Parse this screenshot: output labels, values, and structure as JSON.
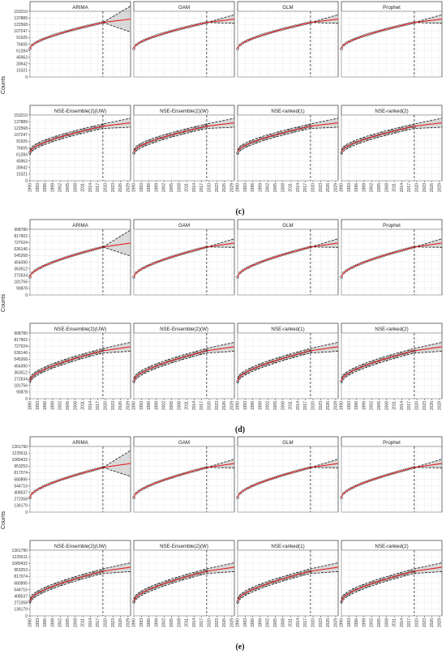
{
  "panels": [
    {
      "label": "(c)",
      "ticks": [
        "0",
        "15321",
        "30642",
        "45963",
        "61284",
        "76605",
        "91926",
        "107247",
        "122568",
        "137889",
        "153210"
      ],
      "ymax": 153210,
      "start": 0.43,
      "forecast": 0.83
    },
    {
      "label": "(d)",
      "ticks": [
        "0",
        "90878",
        "181756",
        "272634",
        "363512",
        "454390",
        "545268",
        "636146",
        "727024",
        "817902",
        "908780"
      ],
      "ymax": 908780,
      "start": 0.27,
      "forecast": 0.73
    },
    {
      "label": "(e)",
      "ticks": [
        "0",
        "136179",
        "272358",
        "408537",
        "544716",
        "680895",
        "817074",
        "953253",
        "1089432",
        "1225611",
        "1361790"
      ],
      "ymax": 1361790,
      "start": 0.22,
      "forecast": 0.68
    }
  ],
  "models_top": [
    "ARIMA",
    "GAM",
    "GLM",
    "Prophet"
  ],
  "models_bottom": [
    "NSE-Ensemble(2)(UW)",
    "NSE-Ensemble(2)(W)",
    "NSE-ranked(1)",
    "NSE-ranked(2)"
  ],
  "ylabel": "Counts",
  "x_ticks": [
    "1990",
    "1993",
    "1996",
    "1999",
    "2002",
    "2005",
    "2008",
    "2011",
    "2014",
    "2017",
    "2020",
    "2023",
    "2026",
    "2029"
  ],
  "vline_year": 2019,
  "colors": {
    "fit": "#e02020",
    "band": "#bbbbbb",
    "ci": "#111111",
    "points": "#222222",
    "grid": "#ebebeb"
  },
  "chart_data": [
    {
      "type": "line",
      "title": "",
      "ylabel": "Counts",
      "xlim": [
        1990,
        2030
      ],
      "ylim": [
        0,
        153210
      ],
      "series": [
        {
          "values": [
            70000,
            84000,
            96000,
            103000,
            109000,
            114000,
            121000,
            126000
          ]
        }
      ]
    },
    {
      "type": "line",
      "title": "",
      "ylabel": "Counts",
      "xlim": [
        1990,
        2030
      ],
      "ylim": [
        0,
        908780
      ],
      "series": [
        {
          "values": [
            245000,
            300000,
            360000,
            430000,
            520000,
            610000,
            690000,
            760000
          ]
        }
      ]
    },
    {
      "type": "line",
      "title": "",
      "ylabel": "Counts",
      "xlim": [
        1990,
        2030
      ],
      "ylim": [
        0,
        1361790
      ],
      "series": [
        {
          "values": [
            300000,
            400000,
            510000,
            620000,
            760000,
            910000,
            1030000,
            1150000
          ]
        }
      ]
    }
  ]
}
